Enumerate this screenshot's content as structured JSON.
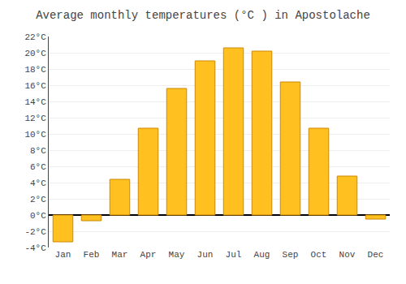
{
  "chart_data": {
    "type": "bar",
    "title": "Average monthly temperatures (°C ) in Apostolache",
    "categories": [
      "Jan",
      "Feb",
      "Mar",
      "Apr",
      "May",
      "Jun",
      "Jul",
      "Aug",
      "Sep",
      "Oct",
      "Nov",
      "Dec"
    ],
    "values": [
      -3.3,
      -0.7,
      4.4,
      10.7,
      15.6,
      19.0,
      20.6,
      20.2,
      16.4,
      10.7,
      4.8,
      -0.5
    ],
    "color": "#FFC020",
    "ylim": [
      -4,
      22
    ],
    "yticks": [
      {
        "value": -4,
        "label": "-4°C"
      },
      {
        "value": -2,
        "label": "-2°C"
      },
      {
        "value": 0,
        "label": "0°C"
      },
      {
        "value": 2,
        "label": "2°C"
      },
      {
        "value": 4,
        "label": "4°C"
      },
      {
        "value": 6,
        "label": "6°C"
      },
      {
        "value": 8,
        "label": "8°C"
      },
      {
        "value": 10,
        "label": "10°C"
      },
      {
        "value": 12,
        "label": "12°C"
      },
      {
        "value": 14,
        "label": "14°C"
      },
      {
        "value": 16,
        "label": "16°C"
      },
      {
        "value": 18,
        "label": "18°C"
      },
      {
        "value": 20,
        "label": "20°C"
      },
      {
        "value": 22,
        "label": "22°C"
      }
    ],
    "grid": true
  }
}
